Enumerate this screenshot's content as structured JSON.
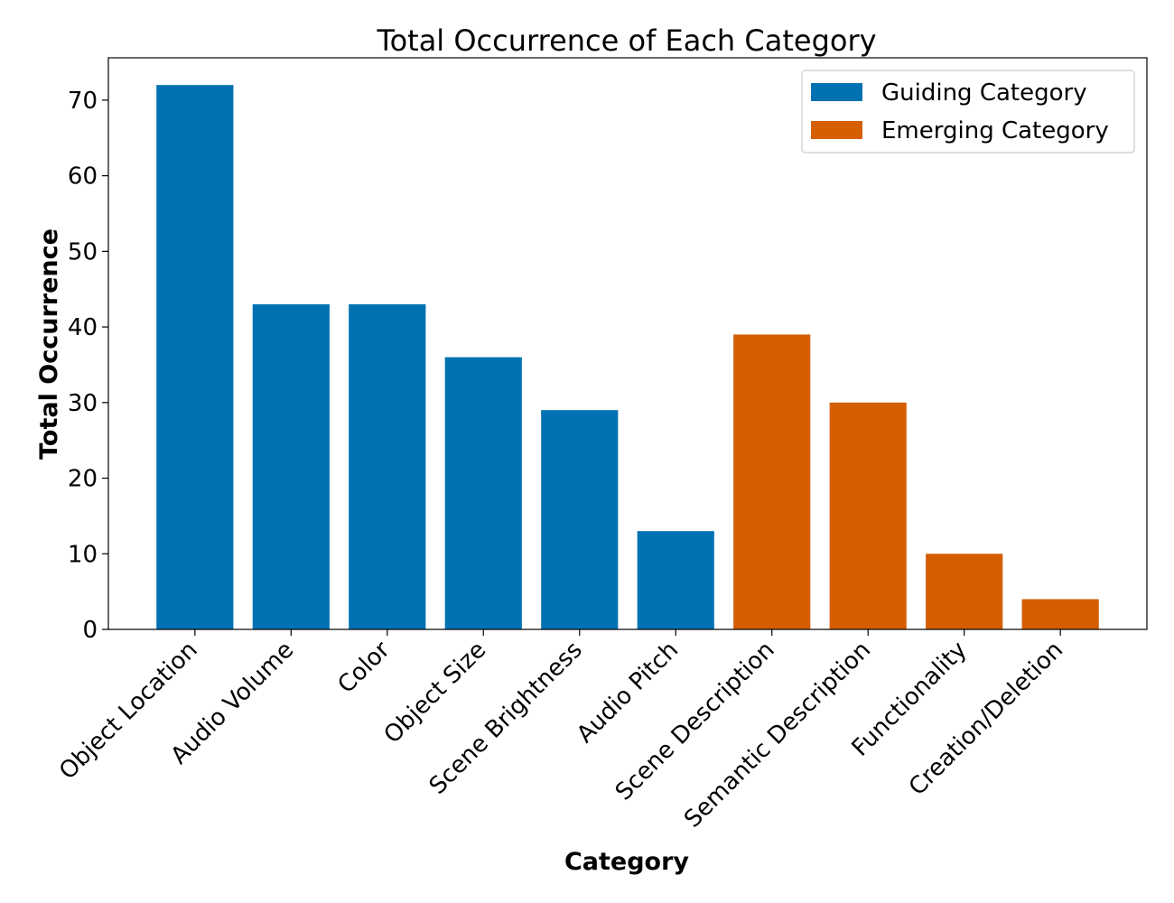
{
  "chart_data": {
    "type": "bar",
    "title": "Total Occurrence of Each Category",
    "xlabel": "Category",
    "ylabel": "Total Occurrence",
    "categories": [
      "Object Location",
      "Audio Volume",
      "Color",
      "Object Size",
      "Scene Brightness",
      "Audio Pitch",
      "Scene Description",
      "Semantic Description",
      "Functionality",
      "Creation/Deletion"
    ],
    "values": [
      72,
      43,
      43,
      36,
      29,
      13,
      39,
      30,
      10,
      4
    ],
    "groups": [
      "Guiding Category",
      "Guiding Category",
      "Guiding Category",
      "Guiding Category",
      "Guiding Category",
      "Guiding Category",
      "Emerging Category",
      "Emerging Category",
      "Emerging Category",
      "Emerging Category"
    ],
    "legend": [
      {
        "name": "Guiding Category",
        "color": "#0072b2"
      },
      {
        "name": "Emerging Category",
        "color": "#d55e00"
      }
    ],
    "legend_position": "top-right",
    "ylim": [
      0,
      75.6
    ],
    "yticks": [
      0,
      10,
      20,
      30,
      40,
      50,
      60,
      70
    ],
    "grid": false
  }
}
